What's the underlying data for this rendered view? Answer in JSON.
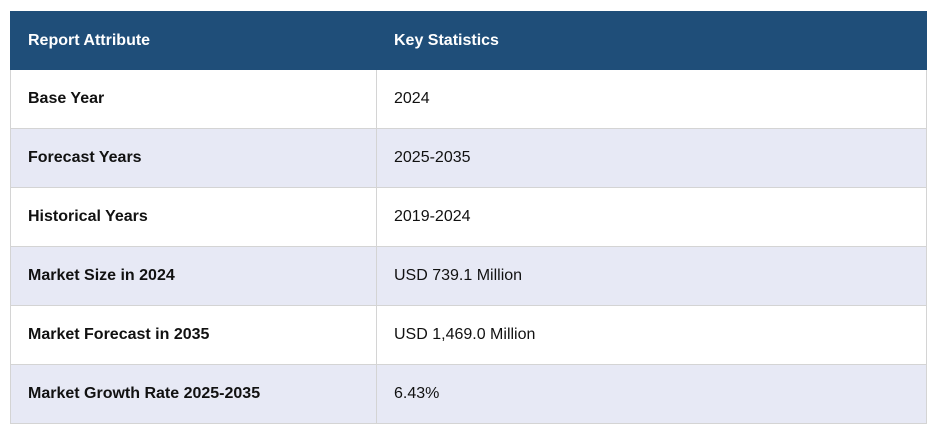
{
  "table": {
    "headers": [
      "Report Attribute",
      "Key Statistics"
    ],
    "rows": [
      {
        "attribute": "Base Year",
        "value": "2024"
      },
      {
        "attribute": "Forecast Years",
        "value": "2025-2035"
      },
      {
        "attribute": "Historical Years",
        "value": "2019-2024"
      },
      {
        "attribute": "Market Size in 2024",
        "value": "USD 739.1 Million"
      },
      {
        "attribute": "Market Forecast in 2035",
        "value": "USD 1,469.0 Million"
      },
      {
        "attribute": "Market Growth Rate 2025-2035",
        "value": "6.43%"
      }
    ]
  },
  "colors": {
    "header_bg": "#1f4e79",
    "header_text": "#ffffff",
    "stripe_bg": "#e7e9f5",
    "border": "#d4d4d4"
  }
}
